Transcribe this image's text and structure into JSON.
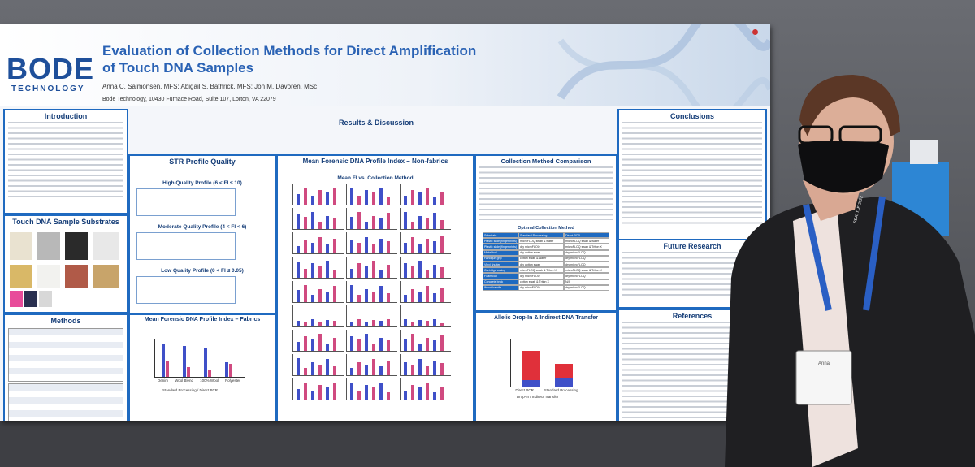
{
  "poster": {
    "logo": "BODE",
    "logo_sub": "TECHNOLOGY",
    "title": "Evaluation of Collection Methods for Direct Amplification of Touch DNA Samples",
    "authors": "Anna C. Salmonsen, MFS; Abigail S. Bathrick, MFS; Jon M. Davoren, MSc",
    "affiliation": "Bode Technology, 10430 Furnace Road, Suite 107, Lorton, VA 22079",
    "results_header": "Results & Discussion"
  },
  "sections": {
    "intro": "Introduction",
    "substrates": "Touch DNA Sample Substrates",
    "methods": "Methods",
    "str": "STR Profile Quality",
    "fabrics": "Mean Forensic DNA Profile Index – Fabrics",
    "nonfabrics": "Mean Forensic DNA Profile Index – Non-fabrics",
    "comparison": "Collection Method Comparison",
    "dropin": "Allelic Drop-In & Indirect DNA Transfer",
    "conclusions": "Conclusions",
    "future": "Future Research",
    "references": "References"
  },
  "str": {
    "high": "High Quality Profile (6 < FI ≤ 10)",
    "moderate": "Moderate Quality Profile (4 < FI < 6)",
    "low": "Low Quality Profile (0 < FI ≤ 0.05)"
  },
  "fabrics_chart": {
    "categories": [
      "Denim",
      "Wool Blend",
      "100% Wool",
      "Polyester"
    ],
    "legend": [
      "Standard Processing",
      "Direct PCR"
    ]
  },
  "nonfabric_chart": {
    "title": "Mean FI vs. Collection Method"
  },
  "optimal_table": {
    "title": "Optimal Collection Method",
    "headers": [
      "Substrate",
      "Standard Processing",
      "Direct PCR"
    ],
    "rows": [
      [
        "Plastic slide (fingerprints)",
        "microFLOQ swab & water",
        "microFLOQ swab & water"
      ],
      [
        "Plastic slide (fingerprints)",
        "dry microFLOQ",
        "microFLOQ swab & Triton X"
      ],
      [
        "Metal tool",
        "dry cotton swab",
        "dry microFLOQ"
      ],
      [
        "Handgun grip",
        "cotton swab & water",
        "dry microFLOQ"
      ],
      [
        "Vinyl shutter",
        "dry cotton swab",
        "dry microFLOQ"
      ],
      [
        "Cartridge casing",
        "microFLOQ swab & Triton X",
        "microFLOQ swab & Triton X"
      ],
      [
        "Foam cup",
        "dry microFLOQ",
        "dry microFLOQ"
      ],
      [
        "Concrete brick",
        "cotton swab & Triton X",
        "N/A"
      ],
      [
        "Wood handle",
        "dry microFLOQ",
        "dry microFLOQ"
      ]
    ]
  },
  "dropin_chart": {
    "categories": [
      "Direct PCR",
      "Standard Processing"
    ],
    "legend": [
      "Drop-In",
      "Indirect Transfer"
    ]
  },
  "badge": {
    "name": "Anna",
    "event": "SEATTLE 2022"
  }
}
